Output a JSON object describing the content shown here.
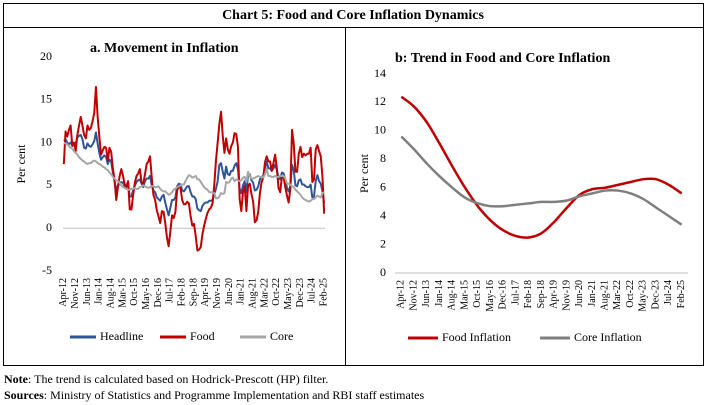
{
  "title": "Chart 5: Food and Core Inflation Dynamics",
  "note": {
    "label": "Note",
    "text": ": The trend is calculated based on Hodrick-Prescott (HP) filter."
  },
  "sources": {
    "label": "Sources",
    "text": ": Ministry of Statistics and Programme Implementation and RBI staff estimates"
  },
  "chart_data": [
    {
      "type": "line",
      "title": "a. Movement in Inflation",
      "y_label": "Per cent",
      "smooth": false,
      "grid": false,
      "legend": "bottom",
      "categories": [
        "Apr-12",
        null,
        null,
        null,
        null,
        null,
        null,
        "Nov-12",
        null,
        null,
        null,
        null,
        null,
        null,
        "Jun-13",
        null,
        null,
        null,
        null,
        null,
        null,
        "Jan-14",
        null,
        null,
        null,
        null,
        null,
        null,
        "Aug-14",
        null,
        null,
        null,
        null,
        null,
        null,
        "Mar-15",
        null,
        null,
        null,
        null,
        null,
        null,
        "Oct-15",
        null,
        null,
        null,
        null,
        null,
        null,
        "May-16",
        null,
        null,
        null,
        null,
        null,
        null,
        "Dec-16",
        null,
        null,
        null,
        null,
        null,
        null,
        "Jul-17",
        null,
        null,
        null,
        null,
        null,
        null,
        "Feb-18",
        null,
        null,
        null,
        null,
        null,
        null,
        "Sep-18",
        null,
        null,
        null,
        null,
        null,
        null,
        "Apr-19",
        null,
        null,
        null,
        null,
        null,
        null,
        "Nov-19",
        null,
        null,
        null,
        null,
        null,
        null,
        "Jun-20",
        null,
        null,
        null,
        null,
        null,
        null,
        "Jan-21",
        null,
        null,
        null,
        null,
        null,
        null,
        "Aug-21",
        null,
        null,
        null,
        null,
        null,
        null,
        "Mar-22",
        null,
        null,
        null,
        null,
        null,
        null,
        "Oct-22",
        null,
        null,
        null,
        null,
        null,
        null,
        "May-23",
        null,
        null,
        null,
        null,
        null,
        null,
        "Dec-23",
        null,
        null,
        null,
        null,
        null,
        null,
        "Jul-24",
        null,
        null,
        null,
        null,
        null,
        null,
        "Feb-25"
      ],
      "series": [
        {
          "name": "Headline",
          "color": "#2f5597",
          "values": [
            10.2,
            10.4,
            10.0,
            9.8,
            10.0,
            9.7,
            9.8,
            9.9,
            10.6,
            10.8,
            10.9,
            10.4,
            9.4,
            9.3,
            9.9,
            9.6,
            9.5,
            9.8,
            10.2,
            11.2,
            9.9,
            8.8,
            8.0,
            8.3,
            8.5,
            8.3,
            7.5,
            8.0,
            7.8,
            6.5,
            5.5,
            4.4,
            5.0,
            5.2,
            5.4,
            5.3,
            4.9,
            5.0,
            5.4,
            3.7,
            3.7,
            4.4,
            5.0,
            5.4,
            5.6,
            5.7,
            5.2,
            4.8,
            5.5,
            5.8,
            5.8,
            6.1,
            5.0,
            4.4,
            4.2,
            3.6,
            3.4,
            3.2,
            3.7,
            3.9,
            3.0,
            2.2,
            1.5,
            2.4,
            3.3,
            3.3,
            3.6,
            4.9,
            5.2,
            5.1,
            4.4,
            4.3,
            4.6,
            4.9,
            4.9,
            4.2,
            3.7,
            3.7,
            3.4,
            2.3,
            2.1,
            2.0,
            2.6,
            2.9,
            3.0,
            3.0,
            3.2,
            3.2,
            3.3,
            4.0,
            4.6,
            5.5,
            7.4,
            7.6,
            6.6,
            5.8,
            7.2,
            6.3,
            6.2,
            6.7,
            6.7,
            7.3,
            7.6,
            6.9,
            4.6,
            4.1,
            5.0,
            5.5,
            4.2,
            6.3,
            6.3,
            5.6,
            5.3,
            4.4,
            4.5,
            4.9,
            5.7,
            6.0,
            6.1,
            7.0,
            7.8,
            7.0,
            7.0,
            6.7,
            7.0,
            7.4,
            6.8,
            5.9,
            5.7,
            6.5,
            6.4,
            5.7,
            4.7,
            4.3,
            4.9,
            7.4,
            6.8,
            5.0,
            4.9,
            5.6,
            5.7,
            5.1,
            5.1,
            4.9,
            4.8,
            4.8,
            5.1,
            3.6,
            3.7,
            5.5,
            6.2,
            5.5,
            5.2,
            4.3,
            2.9
          ]
        },
        {
          "name": "Food",
          "color": "#c00000",
          "values": [
            7.5,
            11.3,
            10.7,
            11.5,
            12.0,
            9.6,
            10.0,
            9.0,
            10.9,
            12.0,
            13.0,
            12.0,
            10.9,
            10.5,
            12.0,
            11.5,
            11.7,
            12.5,
            13.5,
            16.5,
            13.0,
            10.7,
            8.6,
            9.1,
            9.5,
            9.4,
            7.9,
            9.4,
            8.9,
            7.0,
            5.6,
            3.3,
            4.8,
            6.1,
            6.9,
            6.1,
            5.1,
            4.8,
            5.5,
            2.2,
            2.2,
            3.9,
            5.3,
            6.1,
            6.4,
            6.9,
            5.3,
            5.2,
            6.3,
            7.5,
            7.8,
            8.4,
            5.9,
            3.9,
            3.3,
            2.1,
            1.4,
            0.6,
            2.0,
            1.9,
            0.6,
            -1.1,
            -2.1,
            -0.4,
            1.5,
            1.2,
            1.9,
            4.4,
            4.9,
            4.7,
            3.3,
            2.8,
            2.8,
            3.1,
            2.9,
            1.4,
            0.3,
            0.5,
            -0.9,
            -2.6,
            -2.5,
            -2.2,
            -0.7,
            0.3,
            1.1,
            1.8,
            2.2,
            2.4,
            2.9,
            5.1,
            7.9,
            10.0,
            12.2,
            13.6,
            10.8,
            8.8,
            10.5,
            9.2,
            8.7,
            9.6,
            10.0,
            11.1,
            11.0,
            9.5,
            3.4,
            2.0,
            4.3,
            4.9,
            2.0,
            5.0,
            5.2,
            4.0,
            3.1,
            0.7,
            0.9,
            1.9,
            4.1,
            5.4,
            5.9,
            7.7,
            8.4,
            7.8,
            7.8,
            6.7,
            7.6,
            8.6,
            7.0,
            4.7,
            4.2,
            6.0,
            6.0,
            4.8,
            3.8,
            3.0,
            4.6,
            11.5,
            9.9,
            6.6,
            6.6,
            8.7,
            9.5,
            8.3,
            8.7,
            8.5,
            8.7,
            8.7,
            9.4,
            5.4,
            5.7,
            9.2,
            9.7,
            9.0,
            8.4,
            6.0,
            1.7
          ]
        },
        {
          "name": "Core",
          "color": "#a6a6a6",
          "values": [
            10.0,
            9.9,
            9.8,
            9.6,
            9.4,
            9.3,
            9.0,
            8.8,
            8.6,
            8.3,
            8.1,
            7.9,
            7.8,
            7.6,
            7.5,
            7.6,
            7.6,
            7.8,
            7.9,
            7.8,
            7.6,
            7.5,
            7.4,
            7.2,
            7.1,
            6.9,
            6.8,
            6.5,
            6.3,
            6.0,
            5.8,
            5.6,
            5.5,
            5.3,
            5.0,
            4.8,
            4.7,
            4.6,
            4.5,
            4.5,
            4.6,
            4.6,
            4.7,
            4.6,
            4.6,
            4.8,
            4.9,
            5.0,
            4.9,
            4.8,
            4.7,
            4.8,
            4.9,
            4.9,
            4.8,
            4.8,
            4.9,
            4.6,
            4.4,
            4.3,
            4.3,
            4.1,
            3.9,
            4.0,
            4.2,
            4.5,
            4.6,
            4.8,
            4.9,
            5.0,
            5.1,
            5.1,
            5.5,
            5.9,
            6.2,
            6.1,
            5.9,
            6.0,
            6.1,
            5.7,
            5.7,
            5.4,
            5.1,
            4.8,
            4.6,
            4.5,
            4.2,
            4.2,
            4.2,
            4.1,
            3.5,
            3.5,
            3.7,
            4.1,
            4.0,
            4.1,
            5.4,
            5.3,
            5.4,
            5.8,
            5.9,
            5.5,
            5.7,
            5.6,
            5.5,
            5.6,
            5.9,
            6.0,
            5.4,
            6.6,
            6.1,
            5.8,
            5.8,
            5.9,
            6.0,
            6.1,
            6.0,
            6.0,
            5.9,
            6.3,
            7.0,
            6.1,
            6.1,
            6.0,
            6.0,
            6.1,
            6.0,
            6.0,
            6.1,
            6.1,
            6.1,
            5.8,
            5.2,
            5.2,
            5.1,
            4.9,
            4.8,
            4.5,
            4.3,
            4.1,
            3.9,
            3.6,
            3.4,
            3.3,
            3.2,
            3.1,
            3.2,
            3.4,
            3.4,
            3.6,
            3.8,
            3.7,
            3.6,
            4.1,
            4.2
          ]
        }
      ],
      "ylim": [
        -5,
        20
      ],
      "yticks": [
        -5,
        0,
        5,
        10,
        15,
        20
      ]
    },
    {
      "type": "line",
      "title": "b: Trend in Food and Core Inflation",
      "y_label": "Per cent",
      "smooth": true,
      "grid": false,
      "legend": "bottom",
      "categories": [
        "Apr-12",
        "Nov-12",
        "Jun-13",
        "Jan-14",
        "Aug-14",
        "Mar-15",
        "Oct-15",
        "May-16",
        "Dec-16",
        "Jul-17",
        "Feb-18",
        "Sep-18",
        "Apr-19",
        "Nov-19",
        "Jun-20",
        "Jan-21",
        "Aug-21",
        "Mar-22",
        "Oct-22",
        "May-23",
        "Dec-23",
        "Jul-24",
        "Feb-25"
      ],
      "series": [
        {
          "name": "Food Inflation",
          "color": "#c00000",
          "values": [
            12.4,
            11.7,
            10.6,
            9.1,
            7.5,
            6.0,
            4.7,
            3.7,
            3.0,
            2.6,
            2.5,
            2.8,
            3.6,
            4.6,
            5.5,
            5.9,
            6.0,
            6.2,
            6.4,
            6.6,
            6.6,
            6.2,
            5.6
          ]
        },
        {
          "name": "Core Inflation",
          "color": "#7f7f7f",
          "values": [
            9.6,
            8.7,
            7.7,
            6.8,
            6.0,
            5.3,
            4.9,
            4.7,
            4.7,
            4.8,
            4.9,
            5.0,
            5.0,
            5.1,
            5.4,
            5.6,
            5.8,
            5.8,
            5.6,
            5.2,
            4.6,
            4.0,
            3.4
          ]
        }
      ],
      "ylim": [
        0,
        14
      ],
      "yticks": [
        0,
        2,
        4,
        6,
        8,
        10,
        12,
        14
      ]
    }
  ]
}
